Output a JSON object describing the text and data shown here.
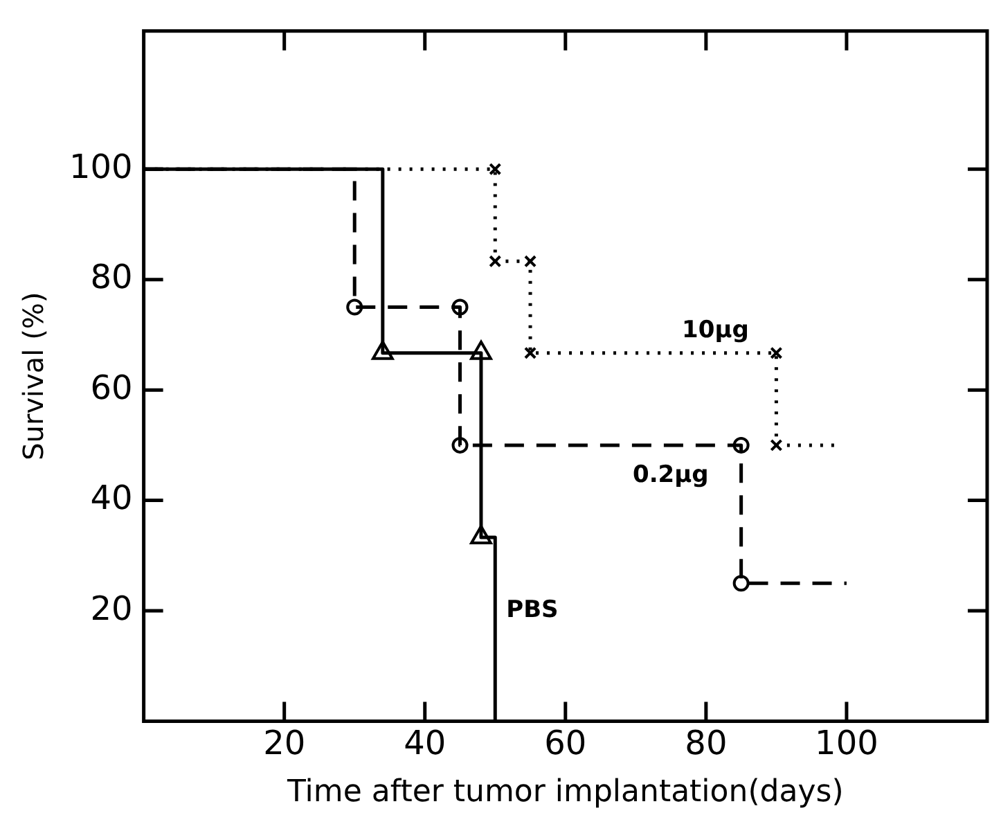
{
  "chart_data": {
    "type": "step",
    "xlabel": "Time after tumor implantation(days)",
    "ylabel": "Survival (%)",
    "xlim": [
      0,
      120
    ],
    "xticks": [
      20,
      40,
      60,
      80,
      100
    ],
    "ylim": [
      0,
      125
    ],
    "yticks": [
      20,
      40,
      60,
      80,
      100
    ],
    "grid": false,
    "legend": false,
    "series": [
      {
        "color": "#000000",
        "line_style": "dashed",
        "x": [
          0,
          30,
          45,
          85,
          100
        ],
        "values": [
          100,
          75,
          50,
          25,
          25
        ]
      },
      {
        "color": "#000000",
        "line_style": "dotted",
        "x": [
          0,
          50,
          55,
          90,
          99
        ],
        "values": [
          100,
          83.3,
          66.7,
          50,
          50
        ]
      },
      {
        "color": "#000000",
        "line_style": "solid",
        "x": [
          0,
          34,
          48,
          50
        ],
        "values": [
          100,
          66.7,
          33.3,
          0
        ]
      },
      {
        "type": "scatter",
        "color": "#000000",
        "marker": "circle",
        "x": [
          30,
          45,
          45,
          85,
          85
        ],
        "values": [
          75,
          75,
          50,
          50,
          25
        ]
      },
      {
        "type": "scatter",
        "color": "#000000",
        "marker": "cross",
        "x": [
          50,
          50,
          55,
          55,
          90,
          90
        ],
        "values": [
          100,
          83.3,
          83.3,
          66.7,
          66.7,
          50
        ]
      },
      {
        "type": "scatter",
        "color": "#000000",
        "marker": "triangle",
        "x": [
          34,
          48,
          48
        ],
        "values": [
          66.7,
          66.7,
          33.3
        ]
      }
    ],
    "annotations": [
      {
        "text": "10μg",
        "x": 75,
        "y": 66.7
      },
      {
        "text": "0.2μg",
        "x": 68,
        "y": 50
      },
      {
        "text": "PBS",
        "x": 50,
        "y": 20
      }
    ]
  }
}
